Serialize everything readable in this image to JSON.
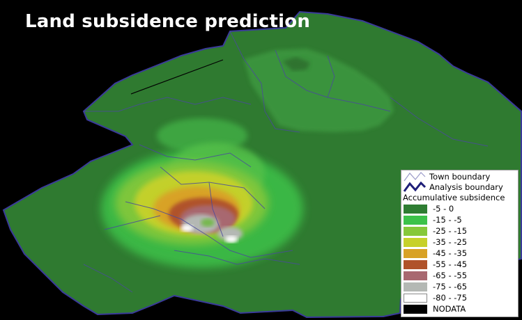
{
  "title": "Land subsidence prediction",
  "legend": {
    "boundaries": [
      {
        "label": "Town boundary",
        "color": "#9a9ac8"
      },
      {
        "label": "Analysis boundary",
        "color": "#1e1e78"
      }
    ],
    "heading": "Accumulative subsidence",
    "classes": [
      {
        "label": "-5 - 0",
        "color": "#2e7d32"
      },
      {
        "label": "-15 - -5",
        "color": "#3cc24a"
      },
      {
        "label": "-25 - -15",
        "color": "#86c83a"
      },
      {
        "label": "-35 - -25",
        "color": "#c7d12a"
      },
      {
        "label": "-45 - -35",
        "color": "#d8a226"
      },
      {
        "label": "-55 - -45",
        "color": "#b0522a"
      },
      {
        "label": "-65 - -55",
        "color": "#a86870"
      },
      {
        "label": "-75 - -65",
        "color": "#b4b8b4"
      },
      {
        "label": "-80 - -75",
        "color": "#ffffff"
      },
      {
        "label": "NODATA",
        "color": "#000000"
      }
    ]
  }
}
